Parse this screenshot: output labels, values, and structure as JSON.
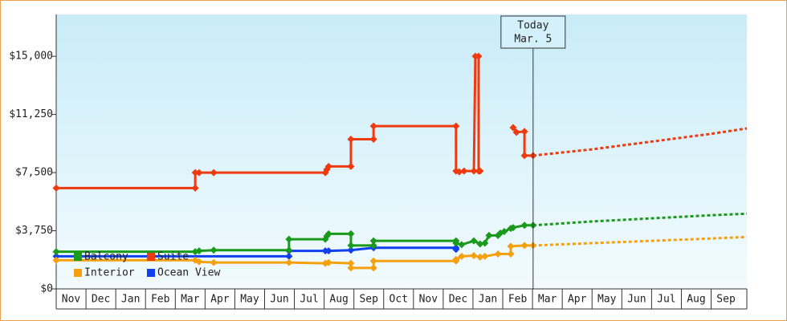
{
  "chart_data": {
    "type": "line",
    "categories": [
      "Nov",
      "Dec",
      "Jan",
      "Feb",
      "Mar",
      "Apr",
      "May",
      "Jun",
      "Jul",
      "Aug",
      "Sep",
      "Oct",
      "Nov",
      "Dec",
      "Jan",
      "Feb",
      "Mar",
      "Apr",
      "May",
      "Jun",
      "Jul",
      "Aug",
      "Sep"
    ],
    "xlim": [
      0,
      23.2
    ],
    "ylim": [
      0,
      17700
    ],
    "yticks": [
      {
        "value": 0,
        "label": "$0"
      },
      {
        "value": 3750,
        "label": "$3,750"
      },
      {
        "value": 7500,
        "label": "$7,500"
      },
      {
        "value": 11250,
        "label": "$11,250"
      },
      {
        "value": 15000,
        "label": "$15,000"
      }
    ],
    "legend": "lower left",
    "today": {
      "x": 16.02,
      "label": [
        "Today",
        "Mar. 5"
      ]
    },
    "series": [
      {
        "name": "Ocean View",
        "color": "#1040ee",
        "x": [
          0,
          7.82,
          7.82,
          9.04,
          9.15,
          9.9,
          10.66,
          13.43,
          13.43
        ],
        "values": [
          2100,
          2100,
          2450,
          2450,
          2450,
          2500,
          2650,
          2650,
          2550
        ]
      },
      {
        "name": "Interior",
        "color": "#f5a10f",
        "x": [
          0,
          4.67,
          4.8,
          5.29,
          7.82,
          9.04,
          9.15,
          9.9,
          9.9,
          10.66,
          10.66,
          13.43,
          13.43,
          13.62,
          14.03,
          14.24,
          14.4,
          14.84,
          15.27,
          15.27,
          15.73,
          16.02
        ],
        "values": [
          1850,
          1850,
          1750,
          1700,
          1700,
          1650,
          1700,
          1650,
          1350,
          1350,
          1800,
          1800,
          1900,
          2100,
          2150,
          2050,
          2100,
          2250,
          2250,
          2750,
          2800,
          2800
        ],
        "forecast": {
          "x": [
            16.02,
            18,
            20,
            22,
            23.2
          ],
          "values": [
            2800,
            2950,
            3100,
            3250,
            3350
          ]
        }
      },
      {
        "name": "Balcony",
        "color": "#1a9a1a",
        "x": [
          0,
          4.67,
          4.8,
          5.29,
          7.82,
          7.82,
          9.04,
          9.09,
          9.15,
          9.9,
          9.9,
          10.66,
          10.66,
          13.43,
          13.43,
          13.62,
          14.03,
          14.24,
          14.4,
          14.54,
          14.84,
          14.92,
          15.05,
          15.27,
          15.35,
          15.73,
          16.02
        ],
        "values": [
          2400,
          2400,
          2450,
          2500,
          2500,
          3200,
          3200,
          3400,
          3550,
          3550,
          2800,
          2800,
          3100,
          3100,
          2950,
          2850,
          3100,
          2900,
          2950,
          3450,
          3450,
          3600,
          3700,
          3900,
          3950,
          4100,
          4100
        ],
        "forecast": {
          "x": [
            16.02,
            18,
            20,
            22,
            23.2
          ],
          "values": [
            4100,
            4350,
            4550,
            4750,
            4850
          ]
        }
      },
      {
        "name": "Suite",
        "color": "#ee3a0f",
        "x": [
          0,
          4.67,
          4.67,
          4.8,
          5.29,
          9.04,
          9.09,
          9.15,
          9.9,
          9.9,
          10.66,
          10.66,
          13.43,
          13.43,
          13.54,
          13.7,
          14.03,
          14.08,
          14.19,
          14.19,
          14.24,
          14.8,
          15.35,
          15.46,
          15.73,
          15.73,
          16.02
        ],
        "values": [
          6500,
          6500,
          7500,
          7500,
          7500,
          7500,
          7700,
          7900,
          7900,
          9650,
          9650,
          10500,
          10500,
          7600,
          7550,
          7600,
          7600,
          15000,
          15000,
          7600,
          7600,
          null,
          10400,
          10100,
          10150,
          8600,
          8600
        ],
        "forecast": {
          "x": [
            16.02,
            18,
            20,
            22,
            23.2
          ],
          "values": [
            8600,
            9000,
            9500,
            10000,
            10350
          ]
        }
      }
    ]
  }
}
